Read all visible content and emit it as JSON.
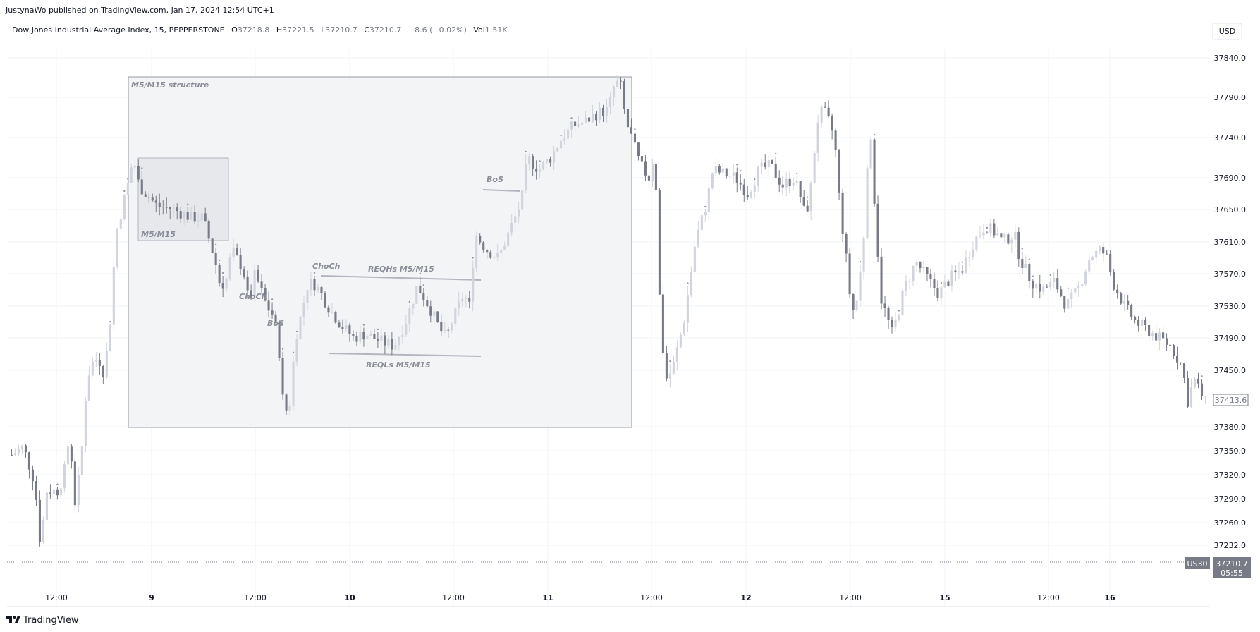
{
  "publish_line": "JustynaWo published on TradingView.com, Jan 17, 2024 12:54 UTC+1",
  "legend": {
    "title": "Dow Jones Industrial Average Index, 15, PEPPERSTONE",
    "o_label": "O",
    "o_value": "37218.8",
    "h_label": "H",
    "h_value": "37221.5",
    "l_label": "L",
    "l_value": "37210.7",
    "c_label": "C",
    "c_value": "37210.7",
    "change": "−8.6 (−0.02%)",
    "vol_label": "Vol",
    "vol_value": "1.51K"
  },
  "currency_button": "USD",
  "symbol_badge": "US30",
  "last_price_label": "37210.7",
  "countdown_label": "05:55",
  "marker_price_label": "37413.6",
  "footer_brand": "TradingView",
  "colors": {
    "candle_up": "#d1d4dc",
    "candle_down": "#787b86",
    "grid": "#f0f3fa",
    "box_fill": "#f3f4f6",
    "box_border": "#9598a1",
    "annotation": "#8a8d97",
    "badge_bg": "#787b86"
  },
  "chart_data": {
    "type": "candlestick",
    "symbol": "US30",
    "timeframe": "15",
    "y_ticks": [
      37840.0,
      37790.0,
      37740.0,
      37690.0,
      37650.0,
      37610.0,
      37570.0,
      37530.0,
      37490.0,
      37450.0,
      37380.0,
      37350.0,
      37320.0,
      37290.0,
      37260.0,
      37232.0
    ],
    "y_tick_labels": [
      "37840.0",
      "37790.0",
      "37740.0",
      "37690.0",
      "37650.0",
      "37610.0",
      "37570.0",
      "37530.0",
      "37490.0",
      "37450.0",
      "37380.0",
      "37350.0",
      "37320.0",
      "37290.0",
      "37260.0",
      "37232.0"
    ],
    "x_tick_labels": [
      "12:00",
      "9",
      "12:00",
      "10",
      "12:00",
      "11",
      "12:00",
      "12",
      "12:00",
      "15",
      "12:00",
      "16"
    ],
    "x_tick_bold": [
      false,
      true,
      false,
      true,
      false,
      true,
      false,
      true,
      false,
      true,
      false,
      true
    ],
    "last_price": 37210.7,
    "marker_price": 37413.6,
    "grid": true,
    "close_path": [
      [
        0,
        37345
      ],
      [
        2,
        37355
      ],
      [
        4,
        37310
      ],
      [
        5,
        37230
      ],
      [
        6,
        37300
      ],
      [
        8,
        37300
      ],
      [
        9,
        37320
      ],
      [
        10,
        37370
      ],
      [
        11,
        37280
      ],
      [
        12,
        37340
      ],
      [
        13,
        37440
      ],
      [
        14,
        37460
      ],
      [
        15,
        37465
      ],
      [
        16,
        37445
      ],
      [
        17,
        37510
      ],
      [
        18,
        37620
      ],
      [
        20,
        37680
      ],
      [
        21,
        37715
      ],
      [
        22,
        37680
      ],
      [
        25,
        37655
      ],
      [
        28,
        37650
      ],
      [
        31,
        37640
      ],
      [
        33,
        37640
      ],
      [
        35,
        37590
      ],
      [
        36,
        37555
      ],
      [
        37,
        37560
      ],
      [
        38,
        37600
      ],
      [
        40,
        37575
      ],
      [
        41,
        37530
      ],
      [
        42,
        37570
      ],
      [
        44,
        37530
      ],
      [
        45,
        37520
      ],
      [
        46,
        37490
      ],
      [
        47,
        37395
      ],
      [
        48,
        37410
      ],
      [
        49,
        37490
      ],
      [
        50,
        37520
      ],
      [
        51,
        37555
      ],
      [
        52,
        37560
      ],
      [
        53,
        37550
      ],
      [
        55,
        37525
      ],
      [
        57,
        37505
      ],
      [
        59,
        37490
      ],
      [
        61,
        37495
      ],
      [
        64,
        37485
      ],
      [
        66,
        37480
      ],
      [
        68,
        37510
      ],
      [
        70,
        37555
      ],
      [
        72,
        37530
      ],
      [
        74,
        37500
      ],
      [
        75,
        37490
      ],
      [
        76,
        37510
      ],
      [
        78,
        37545
      ],
      [
        79,
        37530
      ],
      [
        80,
        37620
      ],
      [
        82,
        37600
      ],
      [
        84,
        37590
      ],
      [
        86,
        37625
      ],
      [
        88,
        37660
      ],
      [
        89,
        37715
      ],
      [
        91,
        37700
      ],
      [
        93,
        37715
      ],
      [
        95,
        37740
      ],
      [
        97,
        37755
      ],
      [
        99,
        37760
      ],
      [
        101,
        37770
      ],
      [
        103,
        37775
      ],
      [
        104,
        37805
      ],
      [
        105,
        37810
      ],
      [
        106,
        37760
      ],
      [
        107,
        37740
      ],
      [
        108,
        37715
      ],
      [
        109,
        37700
      ],
      [
        110,
        37690
      ],
      [
        111,
        37725
      ],
      [
        112,
        37500
      ],
      [
        113,
        37440
      ],
      [
        114,
        37450
      ],
      [
        116,
        37510
      ],
      [
        118,
        37610
      ],
      [
        120,
        37660
      ],
      [
        121,
        37700
      ],
      [
        123,
        37695
      ],
      [
        125,
        37690
      ],
      [
        127,
        37670
      ],
      [
        129,
        37700
      ],
      [
        131,
        37705
      ],
      [
        133,
        37680
      ],
      [
        135,
        37690
      ],
      [
        136,
        37670
      ],
      [
        137,
        37640
      ],
      [
        138,
        37680
      ],
      [
        139,
        37760
      ],
      [
        140,
        37775
      ],
      [
        141,
        37760
      ],
      [
        142,
        37740
      ],
      [
        143,
        37650
      ],
      [
        144,
        37590
      ],
      [
        145,
        37520
      ],
      [
        146,
        37540
      ],
      [
        147,
        37610
      ],
      [
        148,
        37760
      ],
      [
        149,
        37650
      ],
      [
        150,
        37540
      ],
      [
        152,
        37495
      ],
      [
        154,
        37550
      ],
      [
        156,
        37585
      ],
      [
        158,
        37565
      ],
      [
        160,
        37545
      ],
      [
        162,
        37565
      ],
      [
        164,
        37575
      ],
      [
        166,
        37610
      ],
      [
        168,
        37630
      ],
      [
        170,
        37620
      ],
      [
        171,
        37610
      ],
      [
        173,
        37620
      ],
      [
        174,
        37590
      ],
      [
        176,
        37560
      ],
      [
        178,
        37550
      ],
      [
        180,
        37560
      ],
      [
        182,
        37530
      ],
      [
        184,
        37550
      ],
      [
        186,
        37590
      ],
      [
        188,
        37600
      ],
      [
        189,
        37590
      ],
      [
        190,
        37560
      ],
      [
        192,
        37530
      ],
      [
        194,
        37510
      ],
      [
        196,
        37500
      ],
      [
        198,
        37490
      ],
      [
        200,
        37480
      ],
      [
        202,
        37455
      ],
      [
        203,
        37410
      ],
      [
        204,
        37440
      ],
      [
        205,
        37425
      ],
      [
        206,
        37410
      ]
    ]
  },
  "annotations": {
    "structure_label": "M5/M15 structure",
    "inner_box_label": "M5/M15",
    "choch_1": "ChoCh",
    "bos_1": "BoS",
    "choch_2": "ChoCh",
    "reqhs": "REQHs M5/M15",
    "reqls": "REQLs M5/M15",
    "bos_2": "BoS"
  }
}
